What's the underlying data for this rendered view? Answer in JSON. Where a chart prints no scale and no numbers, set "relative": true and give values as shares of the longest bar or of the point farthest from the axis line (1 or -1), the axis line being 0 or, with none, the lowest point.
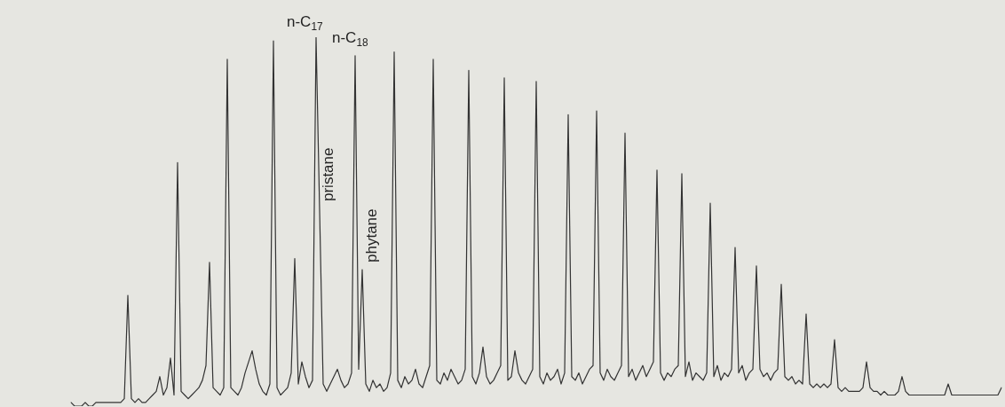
{
  "chart_data": {
    "type": "line",
    "relative": true,
    "legend": false,
    "marker": "none",
    "line_style": "solid",
    "tick_labels": false,
    "categories": [
      null,
      null,
      null,
      null,
      null,
      null,
      null,
      null,
      null,
      null,
      null,
      null,
      null,
      null,
      null,
      null,
      null,
      null,
      null,
      null,
      null,
      null,
      null,
      null,
      null,
      null,
      null,
      null,
      null,
      null,
      null,
      null,
      null,
      null,
      null,
      null,
      null,
      null,
      null,
      null,
      null,
      null,
      null,
      null,
      null,
      null,
      null,
      null,
      null,
      null,
      null,
      null,
      null,
      null,
      null,
      null,
      null,
      null,
      null,
      null,
      null,
      null,
      null,
      null,
      null,
      null,
      null,
      null,
      null,
      null,
      null,
      null,
      null,
      null,
      null,
      null,
      null,
      null,
      null,
      null,
      null,
      null,
      null,
      null,
      null,
      null,
      null,
      null,
      null,
      null,
      null,
      null,
      null,
      null,
      null,
      null,
      null,
      null,
      null,
      null,
      null,
      null,
      null,
      null,
      null,
      null,
      null,
      null,
      null,
      null,
      null,
      null,
      null,
      null,
      null,
      null,
      null,
      null,
      null,
      null,
      null,
      null,
      null,
      null,
      null,
      null,
      null,
      null,
      null,
      null,
      null,
      null,
      null,
      null,
      null,
      null,
      null,
      null,
      null,
      null,
      null,
      null,
      null,
      null,
      null,
      null,
      null,
      null,
      null,
      null,
      null,
      null,
      null,
      null,
      null,
      null,
      null,
      null,
      null,
      null,
      null,
      null,
      null,
      null,
      null,
      null,
      null,
      null,
      null,
      null,
      null,
      null,
      null,
      null,
      null,
      null,
      null,
      null,
      null,
      null,
      null,
      null,
      null,
      null,
      null,
      null,
      null,
      null,
      null,
      null,
      null,
      null,
      null,
      null,
      null,
      null,
      null,
      null,
      null,
      null,
      null,
      null,
      null,
      null,
      null,
      null,
      null,
      null,
      null,
      null,
      null,
      null,
      null,
      null,
      null,
      null,
      null,
      null,
      null,
      null,
      null,
      null,
      null,
      null,
      null,
      null,
      null,
      null,
      null,
      null,
      null,
      null,
      null,
      null,
      null,
      null,
      null,
      null,
      null,
      null,
      null,
      null,
      null,
      null,
      null,
      null,
      null,
      null,
      null,
      null,
      null,
      null,
      null,
      null,
      null,
      null,
      null,
      null,
      null,
      null,
      null,
      null,
      null
    ],
    "series": [
      {
        "color": "#333333",
        "values": [
          0.01,
          0,
          0,
          0,
          0.01,
          0,
          0,
          0.01,
          0.01,
          0.01,
          0.01,
          0.01,
          0.01,
          0.01,
          0.01,
          0.02,
          0.3,
          0.02,
          0.01,
          0.02,
          0.01,
          0.01,
          0.02,
          0.03,
          0.04,
          0.08,
          0.03,
          0.05,
          0.13,
          0.03,
          0.66,
          0.04,
          0.03,
          0.02,
          0.03,
          0.04,
          0.05,
          0.07,
          0.11,
          0.39,
          0.05,
          0.04,
          0.03,
          0.05,
          0.94,
          0.05,
          0.04,
          0.03,
          0.05,
          0.09,
          0.12,
          0.15,
          0.1,
          0.06,
          0.04,
          0.03,
          0.06,
          0.99,
          0.05,
          0.03,
          0.04,
          0.05,
          0.09,
          0.4,
          0.06,
          0.12,
          0.08,
          0.05,
          0.07,
          1.0,
          0.53,
          0.06,
          0.04,
          0.06,
          0.08,
          0.1,
          0.07,
          0.05,
          0.06,
          0.09,
          0.95,
          0.1,
          0.37,
          0.06,
          0.04,
          0.07,
          0.05,
          0.06,
          0.04,
          0.05,
          0.09,
          0.96,
          0.07,
          0.05,
          0.08,
          0.06,
          0.07,
          0.1,
          0.06,
          0.05,
          0.08,
          0.11,
          0.94,
          0.07,
          0.06,
          0.09,
          0.07,
          0.1,
          0.08,
          0.06,
          0.07,
          0.1,
          0.91,
          0.08,
          0.06,
          0.09,
          0.16,
          0.08,
          0.06,
          0.07,
          0.09,
          0.11,
          0.89,
          0.07,
          0.08,
          0.15,
          0.09,
          0.07,
          0.06,
          0.08,
          0.1,
          0.88,
          0.08,
          0.06,
          0.09,
          0.07,
          0.08,
          0.1,
          0.06,
          0.09,
          0.79,
          0.08,
          0.07,
          0.09,
          0.06,
          0.08,
          0.1,
          0.11,
          0.8,
          0.09,
          0.07,
          0.1,
          0.08,
          0.07,
          0.09,
          0.11,
          0.74,
          0.08,
          0.1,
          0.07,
          0.09,
          0.11,
          0.08,
          0.1,
          0.12,
          0.64,
          0.09,
          0.07,
          0.09,
          0.08,
          0.1,
          0.11,
          0.63,
          0.08,
          0.12,
          0.07,
          0.09,
          0.08,
          0.07,
          0.09,
          0.55,
          0.08,
          0.11,
          0.07,
          0.09,
          0.08,
          0.1,
          0.43,
          0.09,
          0.11,
          0.07,
          0.09,
          0.1,
          0.38,
          0.1,
          0.08,
          0.09,
          0.07,
          0.09,
          0.1,
          0.33,
          0.08,
          0.07,
          0.08,
          0.06,
          0.07,
          0.06,
          0.25,
          0.06,
          0.05,
          0.06,
          0.05,
          0.06,
          0.05,
          0.06,
          0.18,
          0.05,
          0.04,
          0.05,
          0.04,
          0.04,
          0.04,
          0.04,
          0.05,
          0.12,
          0.05,
          0.04,
          0.04,
          0.03,
          0.04,
          0.03,
          0.03,
          0.03,
          0.04,
          0.08,
          0.04,
          0.03,
          0.03,
          0.03,
          0.03,
          0.03,
          0.03,
          0.03,
          0.03,
          0.03,
          0.03,
          0.03,
          0.06,
          0.03,
          0.03,
          0.03,
          0.03,
          0.03,
          0.03,
          0.03,
          0.03,
          0.03,
          0.03,
          0.03,
          0.03,
          0.03,
          0.03,
          0.05
        ]
      }
    ],
    "annotations": [
      "n-C$_{17}$",
      "n-C$_{18}$",
      "pristane",
      "phytane"
    ]
  }
}
